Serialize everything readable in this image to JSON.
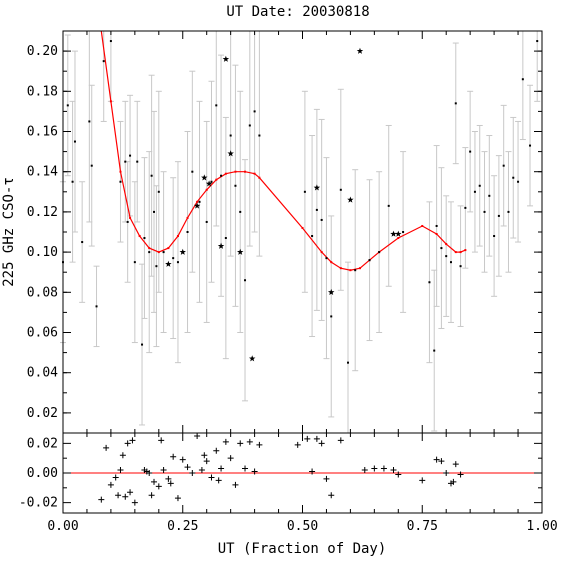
{
  "chart_data": [
    {
      "panel": "main",
      "type": "scatter",
      "title": "UT Date: 20030818",
      "ylabel": "225 GHz CSO-τ",
      "xlim": [
        0.0,
        1.0
      ],
      "ylim": [
        0.01,
        0.21
      ],
      "y_tick_labels": [
        "0.02",
        "0.04",
        "0.06",
        "0.08",
        "0.10",
        "0.12",
        "0.14",
        "0.16",
        "0.18",
        "0.20"
      ],
      "grid": false,
      "series": [
        {
          "kind": "small-dots-with-errorbars",
          "error_bar_color": "#c8c8c8",
          "points": [
            {
              "x": 0.0,
              "y": 0.095,
              "err": 0.04
            },
            {
              "x": 0.01,
              "y": 0.173,
              "err": 0.035
            },
            {
              "x": 0.02,
              "y": 0.135,
              "err": 0.04
            },
            {
              "x": 0.025,
              "y": 0.155,
              "err": 0.045
            },
            {
              "x": 0.04,
              "y": 0.105,
              "err": 0.03
            },
            {
              "x": 0.055,
              "y": 0.165,
              "err": 0.05
            },
            {
              "x": 0.06,
              "y": 0.143,
              "err": 0.04
            },
            {
              "x": 0.07,
              "y": 0.073,
              "err": 0.02
            },
            {
              "x": 0.085,
              "y": 0.195,
              "err": 0.03
            },
            {
              "x": 0.1,
              "y": 0.205,
              "err": 0.03
            },
            {
              "x": 0.12,
              "y": 0.135,
              "err": 0.03
            },
            {
              "x": 0.13,
              "y": 0.145,
              "err": 0.03
            },
            {
              "x": 0.135,
              "y": 0.115,
              "err": 0.03
            },
            {
              "x": 0.14,
              "y": 0.148,
              "err": 0.03
            },
            {
              "x": 0.15,
              "y": 0.095,
              "err": 0.04
            },
            {
              "x": 0.155,
              "y": 0.145,
              "err": 0.03
            },
            {
              "x": 0.165,
              "y": 0.054,
              "err": 0.04
            },
            {
              "x": 0.17,
              "y": 0.107,
              "err": 0.04
            },
            {
              "x": 0.18,
              "y": 0.1,
              "err": 0.05
            },
            {
              "x": 0.185,
              "y": 0.138,
              "err": 0.05
            },
            {
              "x": 0.19,
              "y": 0.12,
              "err": 0.05
            },
            {
              "x": 0.195,
              "y": 0.093,
              "err": 0.04
            },
            {
              "x": 0.2,
              "y": 0.13,
              "err": 0.05
            },
            {
              "x": 0.21,
              "y": 0.1,
              "err": 0.04
            },
            {
              "x": 0.23,
              "y": 0.097,
              "err": 0.04
            },
            {
              "x": 0.24,
              "y": 0.095,
              "err": 0.05
            },
            {
              "x": 0.26,
              "y": 0.11,
              "err": 0.05
            },
            {
              "x": 0.27,
              "y": 0.14,
              "err": 0.05
            },
            {
              "x": 0.285,
              "y": 0.125,
              "err": 0.05
            },
            {
              "x": 0.3,
              "y": 0.115,
              "err": 0.05
            },
            {
              "x": 0.31,
              "y": 0.135,
              "err": 0.05
            },
            {
              "x": 0.32,
              "y": 0.173,
              "err": 0.06
            },
            {
              "x": 0.33,
              "y": 0.138,
              "err": 0.06
            },
            {
              "x": 0.34,
              "y": 0.107,
              "err": 0.06
            },
            {
              "x": 0.35,
              "y": 0.158,
              "err": 0.06
            },
            {
              "x": 0.36,
              "y": 0.133,
              "err": 0.06
            },
            {
              "x": 0.37,
              "y": 0.12,
              "err": 0.06
            },
            {
              "x": 0.38,
              "y": 0.086,
              "err": 0.06
            },
            {
              "x": 0.39,
              "y": 0.163,
              "err": 0.06
            },
            {
              "x": 0.4,
              "y": 0.17,
              "err": 0.06
            },
            {
              "x": 0.41,
              "y": 0.158,
              "err": 0.06
            },
            {
              "x": 0.505,
              "y": 0.13,
              "err": 0.05
            },
            {
              "x": 0.52,
              "y": 0.108,
              "err": 0.05
            },
            {
              "x": 0.53,
              "y": 0.121,
              "err": 0.05
            },
            {
              "x": 0.54,
              "y": 0.116,
              "err": 0.05
            },
            {
              "x": 0.55,
              "y": 0.097,
              "err": 0.05
            },
            {
              "x": 0.56,
              "y": 0.068,
              "err": 0.05
            },
            {
              "x": 0.58,
              "y": 0.131,
              "err": 0.05
            },
            {
              "x": 0.595,
              "y": 0.045,
              "err": 0.05
            },
            {
              "x": 0.61,
              "y": 0.091,
              "err": 0.05
            },
            {
              "x": 0.64,
              "y": 0.096,
              "err": 0.04
            },
            {
              "x": 0.66,
              "y": 0.1,
              "err": 0.04
            },
            {
              "x": 0.68,
              "y": 0.123,
              "err": 0.04
            },
            {
              "x": 0.71,
              "y": 0.11,
              "err": 0.04
            },
            {
              "x": 0.765,
              "y": 0.085,
              "err": 0.04
            },
            {
              "x": 0.775,
              "y": 0.051,
              "err": 0.04
            },
            {
              "x": 0.78,
              "y": 0.113,
              "err": 0.04
            },
            {
              "x": 0.79,
              "y": 0.102,
              "err": 0.04
            },
            {
              "x": 0.8,
              "y": 0.098,
              "err": 0.03
            },
            {
              "x": 0.81,
              "y": 0.095,
              "err": 0.03
            },
            {
              "x": 0.82,
              "y": 0.174,
              "err": 0.03
            },
            {
              "x": 0.83,
              "y": 0.093,
              "err": 0.03
            },
            {
              "x": 0.84,
              "y": 0.122,
              "err": 0.03
            },
            {
              "x": 0.85,
              "y": 0.15,
              "err": 0.03
            },
            {
              "x": 0.86,
              "y": 0.13,
              "err": 0.03
            },
            {
              "x": 0.87,
              "y": 0.133,
              "err": 0.03
            },
            {
              "x": 0.88,
              "y": 0.12,
              "err": 0.03
            },
            {
              "x": 0.89,
              "y": 0.128,
              "err": 0.03
            },
            {
              "x": 0.9,
              "y": 0.108,
              "err": 0.03
            },
            {
              "x": 0.91,
              "y": 0.118,
              "err": 0.03
            },
            {
              "x": 0.92,
              "y": 0.143,
              "err": 0.03
            },
            {
              "x": 0.93,
              "y": 0.12,
              "err": 0.03
            },
            {
              "x": 0.94,
              "y": 0.137,
              "err": 0.03
            },
            {
              "x": 0.95,
              "y": 0.135,
              "err": 0.03
            },
            {
              "x": 0.96,
              "y": 0.186,
              "err": 0.03
            },
            {
              "x": 0.975,
              "y": 0.153,
              "err": 0.03
            },
            {
              "x": 0.99,
              "y": 0.205,
              "err": 0.03
            }
          ]
        },
        {
          "kind": "star-markers",
          "points": [
            {
              "x": 0.22,
              "y": 0.094
            },
            {
              "x": 0.25,
              "y": 0.1
            },
            {
              "x": 0.28,
              "y": 0.123
            },
            {
              "x": 0.295,
              "y": 0.137
            },
            {
              "x": 0.305,
              "y": 0.134
            },
            {
              "x": 0.33,
              "y": 0.103
            },
            {
              "x": 0.34,
              "y": 0.196
            },
            {
              "x": 0.35,
              "y": 0.149
            },
            {
              "x": 0.37,
              "y": 0.1
            },
            {
              "x": 0.395,
              "y": 0.047
            },
            {
              "x": 0.53,
              "y": 0.132
            },
            {
              "x": 0.56,
              "y": 0.08
            },
            {
              "x": 0.6,
              "y": 0.126
            },
            {
              "x": 0.62,
              "y": 0.2
            },
            {
              "x": 0.69,
              "y": 0.109
            },
            {
              "x": 0.7,
              "y": 0.109
            }
          ]
        },
        {
          "kind": "fit-line",
          "color": "#ff0000",
          "points": [
            {
              "x": 0.08,
              "y": 0.215
            },
            {
              "x": 0.1,
              "y": 0.175
            },
            {
              "x": 0.12,
              "y": 0.14
            },
            {
              "x": 0.14,
              "y": 0.117
            },
            {
              "x": 0.16,
              "y": 0.108
            },
            {
              "x": 0.18,
              "y": 0.102
            },
            {
              "x": 0.2,
              "y": 0.1
            },
            {
              "x": 0.22,
              "y": 0.102
            },
            {
              "x": 0.24,
              "y": 0.108
            },
            {
              "x": 0.26,
              "y": 0.117
            },
            {
              "x": 0.28,
              "y": 0.125
            },
            {
              "x": 0.3,
              "y": 0.131
            },
            {
              "x": 0.32,
              "y": 0.136
            },
            {
              "x": 0.34,
              "y": 0.139
            },
            {
              "x": 0.36,
              "y": 0.14
            },
            {
              "x": 0.38,
              "y": 0.14
            },
            {
              "x": 0.4,
              "y": 0.139
            },
            {
              "x": 0.41,
              "y": 0.137
            },
            {
              "x": 0.5,
              "y": 0.112
            },
            {
              "x": 0.54,
              "y": 0.1
            },
            {
              "x": 0.56,
              "y": 0.095
            },
            {
              "x": 0.58,
              "y": 0.092
            },
            {
              "x": 0.6,
              "y": 0.091
            },
            {
              "x": 0.62,
              "y": 0.092
            },
            {
              "x": 0.64,
              "y": 0.096
            },
            {
              "x": 0.66,
              "y": 0.1
            },
            {
              "x": 0.7,
              "y": 0.107
            },
            {
              "x": 0.75,
              "y": 0.113
            },
            {
              "x": 0.78,
              "y": 0.109
            },
            {
              "x": 0.8,
              "y": 0.104
            },
            {
              "x": 0.82,
              "y": 0.1
            },
            {
              "x": 0.83,
              "y": 0.1
            },
            {
              "x": 0.84,
              "y": 0.101
            }
          ]
        }
      ]
    },
    {
      "panel": "residuals",
      "type": "scatter",
      "xlabel": "UT (Fraction of Day)",
      "xlim": [
        0.0,
        1.0
      ],
      "ylim": [
        -0.027,
        0.027
      ],
      "x_tick_labels": [
        "0.00",
        "0.25",
        "0.50",
        "0.75",
        "1.00"
      ],
      "y_tick_labels": [
        "-0.02",
        "0.00",
        "0.02"
      ],
      "zero_line_color": "#ff0000",
      "series": [
        {
          "kind": "plus-markers",
          "points": [
            {
              "x": 0.08,
              "y": -0.018
            },
            {
              "x": 0.09,
              "y": 0.017
            },
            {
              "x": 0.1,
              "y": -0.008
            },
            {
              "x": 0.11,
              "y": -0.003
            },
            {
              "x": 0.115,
              "y": -0.015
            },
            {
              "x": 0.12,
              "y": 0.002
            },
            {
              "x": 0.125,
              "y": 0.012
            },
            {
              "x": 0.13,
              "y": -0.016
            },
            {
              "x": 0.135,
              "y": 0.02
            },
            {
              "x": 0.14,
              "y": -0.013
            },
            {
              "x": 0.145,
              "y": 0.022
            },
            {
              "x": 0.15,
              "y": -0.02
            },
            {
              "x": 0.17,
              "y": 0.002
            },
            {
              "x": 0.175,
              "y": 0.001
            },
            {
              "x": 0.18,
              "y": 0.0
            },
            {
              "x": 0.185,
              "y": -0.015
            },
            {
              "x": 0.19,
              "y": -0.006
            },
            {
              "x": 0.2,
              "y": -0.009
            },
            {
              "x": 0.205,
              "y": 0.022
            },
            {
              "x": 0.21,
              "y": 0.002
            },
            {
              "x": 0.22,
              "y": -0.004
            },
            {
              "x": 0.225,
              "y": -0.007
            },
            {
              "x": 0.23,
              "y": 0.011
            },
            {
              "x": 0.24,
              "y": -0.017
            },
            {
              "x": 0.25,
              "y": 0.009
            },
            {
              "x": 0.26,
              "y": 0.004
            },
            {
              "x": 0.27,
              "y": 0.0
            },
            {
              "x": 0.28,
              "y": 0.025
            },
            {
              "x": 0.29,
              "y": 0.002
            },
            {
              "x": 0.295,
              "y": 0.012
            },
            {
              "x": 0.3,
              "y": 0.008
            },
            {
              "x": 0.31,
              "y": -0.003
            },
            {
              "x": 0.32,
              "y": 0.015
            },
            {
              "x": 0.325,
              "y": -0.005
            },
            {
              "x": 0.33,
              "y": 0.003
            },
            {
              "x": 0.34,
              "y": 0.021
            },
            {
              "x": 0.35,
              "y": 0.01
            },
            {
              "x": 0.36,
              "y": -0.008
            },
            {
              "x": 0.37,
              "y": 0.02
            },
            {
              "x": 0.38,
              "y": 0.003
            },
            {
              "x": 0.39,
              "y": 0.021
            },
            {
              "x": 0.4,
              "y": 0.001
            },
            {
              "x": 0.41,
              "y": 0.019
            },
            {
              "x": 0.49,
              "y": 0.019
            },
            {
              "x": 0.51,
              "y": 0.023
            },
            {
              "x": 0.52,
              "y": 0.001
            },
            {
              "x": 0.53,
              "y": 0.023
            },
            {
              "x": 0.54,
              "y": 0.02
            },
            {
              "x": 0.55,
              "y": -0.004
            },
            {
              "x": 0.56,
              "y": -0.015
            },
            {
              "x": 0.58,
              "y": 0.022
            },
            {
              "x": 0.63,
              "y": 0.002
            },
            {
              "x": 0.65,
              "y": 0.003
            },
            {
              "x": 0.67,
              "y": 0.003
            },
            {
              "x": 0.69,
              "y": 0.002
            },
            {
              "x": 0.7,
              "y": -0.001
            },
            {
              "x": 0.75,
              "y": -0.005
            },
            {
              "x": 0.78,
              "y": 0.009
            },
            {
              "x": 0.79,
              "y": 0.008
            },
            {
              "x": 0.8,
              "y": 0.0
            },
            {
              "x": 0.81,
              "y": -0.007
            },
            {
              "x": 0.815,
              "y": -0.006
            },
            {
              "x": 0.82,
              "y": 0.006
            },
            {
              "x": 0.83,
              "y": -0.001
            }
          ]
        }
      ]
    }
  ]
}
